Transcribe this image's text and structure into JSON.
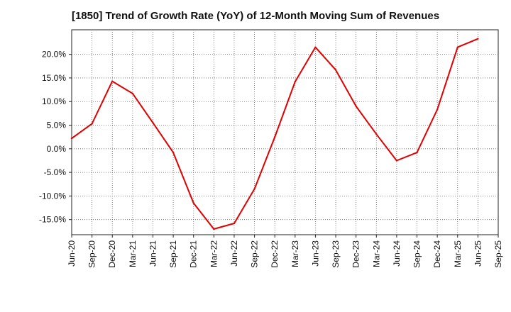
{
  "chart_data": {
    "type": "line",
    "title": "[1850]  Trend of Growth Rate (YoY) of 12-Month Moving Sum of Revenues",
    "xlabel": "",
    "ylabel": "",
    "categories": [
      "Jun-20",
      "Sep-20",
      "Dec-20",
      "Mar-21",
      "Jun-21",
      "Sep-21",
      "Dec-21",
      "Mar-22",
      "Jun-22",
      "Sep-22",
      "Dec-22",
      "Mar-23",
      "Jun-23",
      "Sep-23",
      "Dec-23",
      "Mar-24",
      "Jun-24",
      "Sep-24",
      "Dec-24",
      "Mar-25",
      "Jun-25",
      "Sep-25"
    ],
    "series": [
      {
        "color": "#e00000",
        "values": [
          2.2,
          5.3,
          14.3,
          11.7,
          5.5,
          -0.8,
          -11.5,
          -17.0,
          -15.8,
          -8.5,
          2.5,
          14.2,
          21.5,
          16.7,
          9.0,
          3.1,
          -2.5,
          -0.8,
          8.3,
          21.5,
          23.3,
          null
        ]
      }
    ],
    "yticks": [
      -15,
      -10,
      -5,
      0,
      5,
      10,
      15,
      20
    ],
    "ytick_labels": [
      "-15.0%",
      "-10.0%",
      "-5.0%",
      "0.0%",
      "5.0%",
      "10.0%",
      "15.0%",
      "20.0%"
    ],
    "ylim": [
      -18.2,
      25.2
    ],
    "grid": true
  }
}
